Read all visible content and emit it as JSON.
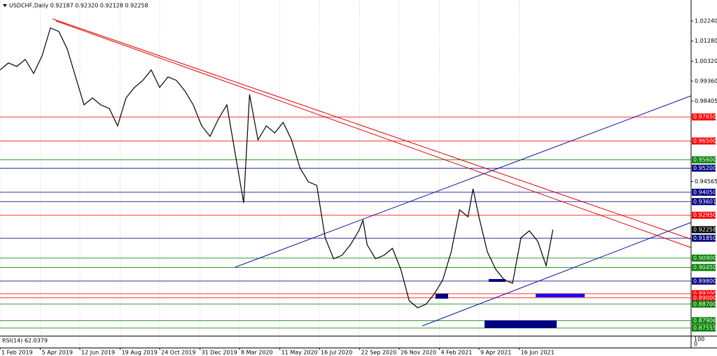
{
  "chart_data": {
    "type": "line",
    "header": "USDCHF,Daily  0.92187 0.92320 0.92128 0.92258",
    "indicator": "RSI(14) 62.0379",
    "indicator_scale": [
      "100",
      "0"
    ],
    "color": "#000000",
    "grid": true,
    "x": [
      0,
      10,
      20,
      30,
      40,
      50,
      60,
      70,
      80,
      90,
      100,
      110,
      120,
      130,
      140,
      150,
      160,
      170,
      180,
      190,
      200,
      210,
      220,
      230,
      240,
      250,
      260,
      270,
      280,
      290,
      297,
      307,
      317,
      327,
      337,
      347,
      357,
      367,
      377,
      387,
      397,
      407,
      417,
      427,
      432,
      437,
      447,
      457,
      467,
      477,
      487,
      497,
      507,
      517,
      527,
      537,
      547,
      557,
      563,
      570,
      580,
      590,
      600,
      610,
      620,
      630,
      640,
      650,
      658
    ],
    "values": [
      0.99898,
      1.00233,
      1.00066,
      1.004,
      0.99731,
      1.00567,
      1.01905,
      1.01738,
      1.00902,
      0.99564,
      0.98226,
      0.9856,
      0.98226,
      0.98059,
      0.97222,
      0.9856,
      0.99062,
      0.99397,
      0.99898,
      0.99062,
      0.99564,
      0.99397,
      0.98895,
      0.98226,
      0.97222,
      0.96721,
      0.97557,
      0.98226,
      0.95884,
      0.93543,
      0.98728,
      0.96553,
      0.97222,
      0.96888,
      0.9739,
      0.96553,
      0.95215,
      0.94546,
      0.94379,
      0.9187,
      0.90867,
      0.91034,
      0.91536,
      0.92205,
      0.92707,
      0.91536,
      0.90867,
      0.91034,
      0.91369,
      0.90365,
      0.8886,
      0.88525,
      0.88693,
      0.89194,
      0.89863,
      0.91201,
      0.93208,
      0.92874,
      0.94212,
      0.92874,
      0.91201,
      0.90365,
      0.89863,
      0.89696,
      0.9187,
      0.92205,
      0.91703,
      0.90532,
      0.92258
    ],
    "xlim": [
      0,
      822.5
    ],
    "xticks": [
      {
        "value": 0,
        "label": "1 Feb 2019"
      },
      {
        "value": 48,
        "label": "5 Apr 2019"
      },
      {
        "value": 95,
        "label": "12 Jun 2019"
      },
      {
        "value": 143,
        "label": "19 Aug 2019"
      },
      {
        "value": 190,
        "label": "24 Oct 2019"
      },
      {
        "value": 238,
        "label": "31 Dec 2019"
      },
      {
        "value": 285,
        "label": "8 Mar 2020"
      },
      {
        "value": 333,
        "label": "11 May 2020"
      },
      {
        "value": 380,
        "label": "16 Jul 2020"
      },
      {
        "value": 428,
        "label": "22 Sep 2020"
      },
      {
        "value": 475,
        "label": "26 Nov 2020"
      },
      {
        "value": 523,
        "label": "4 Feb 2021"
      },
      {
        "value": 570,
        "label": "9 Apr 2021"
      },
      {
        "value": 618,
        "label": "16 Jun 2021"
      }
    ],
    "ylim": [
      0.87187,
      1.03244
    ],
    "yticks": [
      {
        "value": 1.0224,
        "label": "1.02240"
      },
      {
        "value": 1.0128,
        "label": "1.01280"
      },
      {
        "value": 1.0032,
        "label": "1.00320"
      },
      {
        "value": 0.9936,
        "label": "0.99360"
      },
      {
        "value": 0.98405,
        "label": "0.98405"
      },
      {
        "value": 0.94565,
        "label": "0.94565"
      }
    ],
    "levels": [
      {
        "value": 0.9765,
        "label": "0.97650",
        "color": "#ff0000"
      },
      {
        "value": 0.965,
        "label": "0.96500",
        "color": "#ff0000"
      },
      {
        "value": 0.956,
        "label": "0.95600",
        "color": "#008000"
      },
      {
        "value": 0.952,
        "label": "0.95200",
        "color": "#000080"
      },
      {
        "value": 0.9405,
        "label": "0.94050",
        "color": "#000080"
      },
      {
        "value": 0.93601,
        "label": "0.93601",
        "color": "#000080"
      },
      {
        "value": 0.9295,
        "label": "0.92950",
        "color": "#ff0000"
      },
      {
        "value": 0.9185,
        "label": "0.91850",
        "color": "#000080"
      },
      {
        "value": 0.909,
        "label": "0.90900",
        "color": "#008000"
      },
      {
        "value": 0.9045,
        "label": "0.90450",
        "color": "#008000"
      },
      {
        "value": 0.898,
        "label": "0.89800",
        "color": "#000080"
      },
      {
        "value": 0.892,
        "label": "0.89200",
        "color": "#ff0000"
      },
      {
        "value": 0.89,
        "label": "0.89000",
        "color": "#ff0000"
      },
      {
        "value": 0.887,
        "label": "0.88700",
        "color": "#008000"
      },
      {
        "value": 0.87906,
        "label": "0.87906",
        "color": "#008000"
      },
      {
        "value": 0.87555,
        "label": "0.87555",
        "color": "#008000"
      }
    ],
    "current": {
      "value": 0.92258,
      "label": "0.92258",
      "color": "#000000"
    }
  }
}
